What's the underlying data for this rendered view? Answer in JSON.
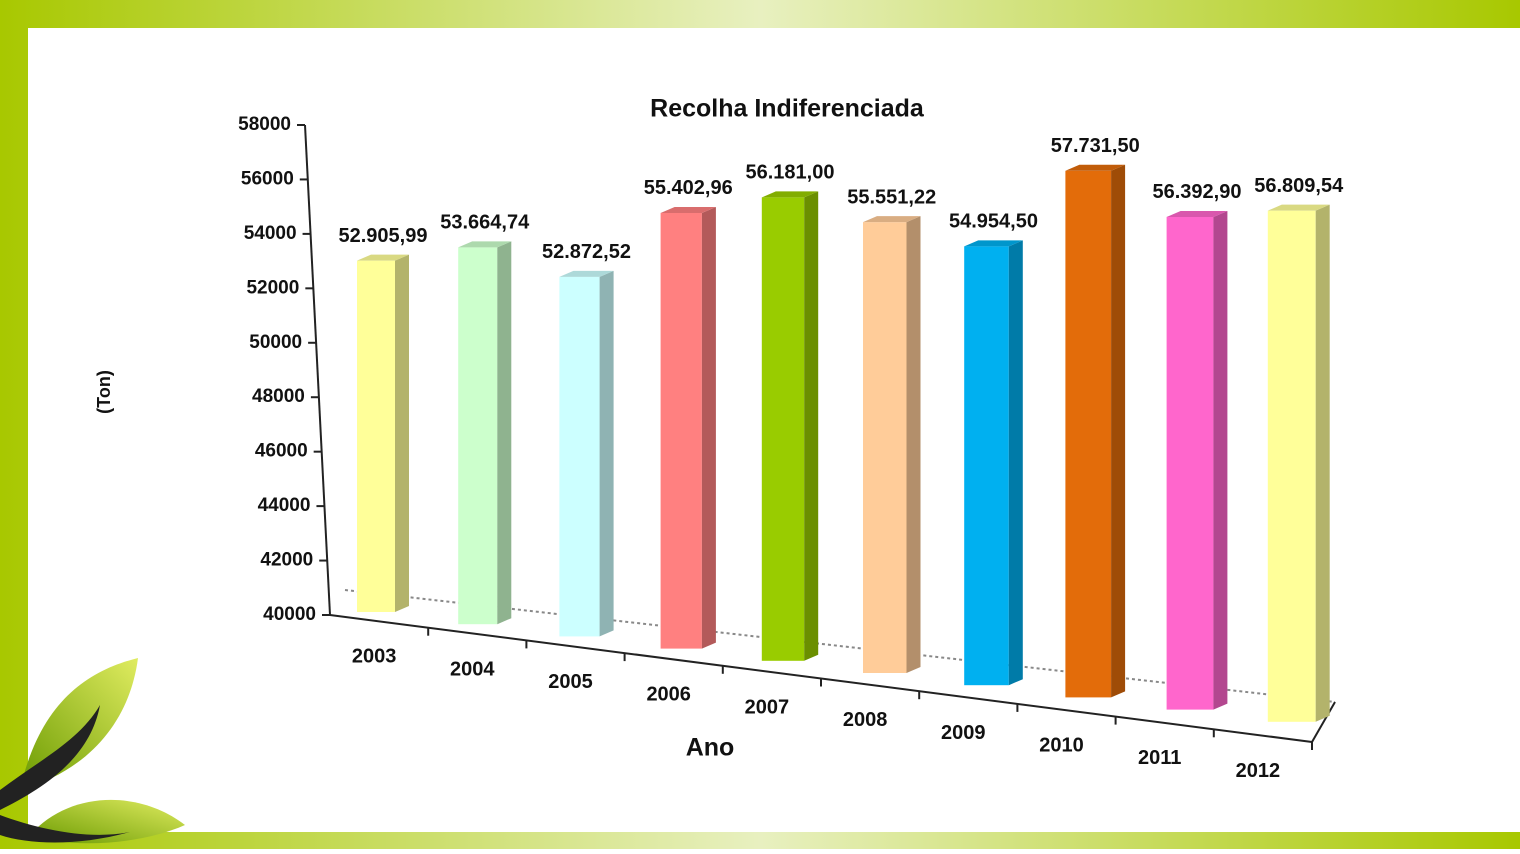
{
  "chart_data": {
    "type": "bar3d",
    "title": "Recolha Indiferenciada",
    "x_label": "Ano",
    "y_label": "(Ton)",
    "categories": [
      "2003",
      "2004",
      "2005",
      "2006",
      "2007",
      "2008",
      "2009",
      "2010",
      "2011",
      "2012"
    ],
    "values": [
      52905.99,
      53664.74,
      52872.52,
      55402.96,
      56181.0,
      55551.22,
      54954.5,
      57731.5,
      56392.9,
      56809.54
    ],
    "value_labels": [
      "52.905,99",
      "53.664,74",
      "52.872,52",
      "55.402,96",
      "56.181,00",
      "55.551,22",
      "54.954,50",
      "57.731,50",
      "56.392,90",
      "56.809,54"
    ],
    "colors": [
      "#ffff99",
      "#ccffcc",
      "#ccffff",
      "#ff8080",
      "#99cc00",
      "#ffcc99",
      "#00b0f0",
      "#e36c0a",
      "#ff66cc",
      "#ffff99"
    ],
    "ylim": [
      40000,
      58000
    ],
    "yticks": [
      40000,
      42000,
      44000,
      46000,
      48000,
      50000,
      52000,
      54000,
      56000,
      58000
    ]
  }
}
